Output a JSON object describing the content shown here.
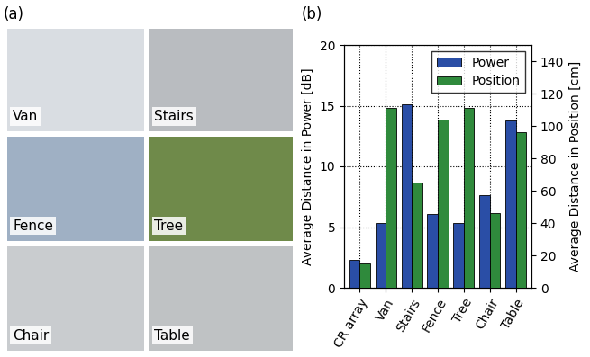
{
  "panel_a": {
    "label": "(a)",
    "photos": [
      "Van",
      "Stairs",
      "Fence",
      "Tree",
      "Chair",
      "Table"
    ]
  },
  "chart_data": {
    "type": "bar",
    "panel_label": "(b)",
    "categories": [
      "CR array",
      "Van",
      "Stairs",
      "Fence",
      "Tree",
      "Chair",
      "Table"
    ],
    "series": [
      {
        "name": "Power",
        "color": "#2a4ea6",
        "values": [
          2.3,
          5.3,
          15.1,
          6.1,
          5.3,
          7.6,
          13.8
        ]
      },
      {
        "name": "Position",
        "color": "#2f8a3c",
        "axis": "y2",
        "values": [
          15,
          111,
          65,
          104,
          111,
          46,
          96
        ]
      }
    ],
    "ylabel": "Average Distance in Power [dB]",
    "y2label": "Average Distance in Position [cm]",
    "ylim": [
      0,
      20
    ],
    "yticks": [
      0,
      5,
      10,
      15,
      20
    ],
    "y2lim": [
      0,
      150
    ],
    "y2ticks": [
      0,
      20,
      40,
      60,
      80,
      100,
      120,
      140
    ],
    "legend": "upper right",
    "grid": true
  }
}
